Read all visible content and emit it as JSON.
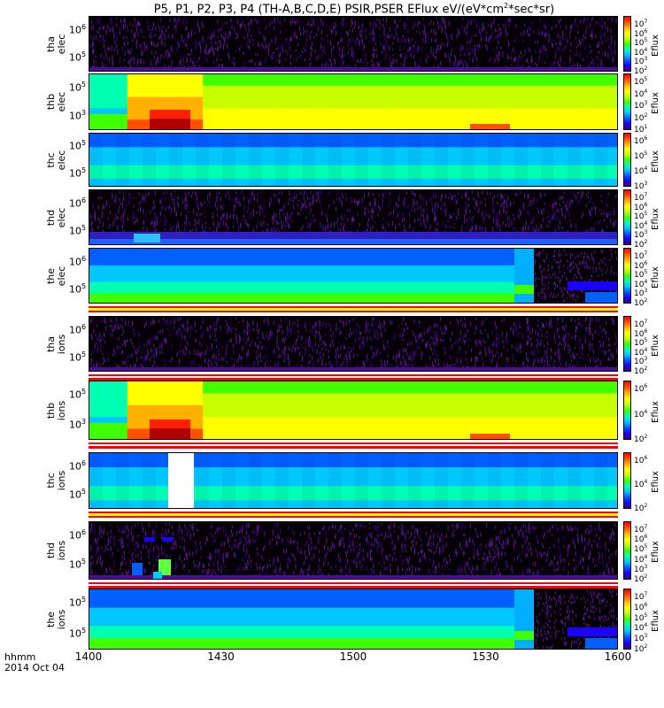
{
  "title": "P5, P1, P2, P3, P4 (TH-A,B,C,D,E) PSIR,PSER EFlux eV/(eV*cm2*sec*sr)",
  "title_parts": {
    "pre": "P5, P1, P2, P3, P4 (TH-A,B,C,D,E) PSIR,PSER EFlux eV/(eV*cm",
    "sup": "2",
    "post": "*sec*sr)"
  },
  "x_units": {
    "line1": "hhmm",
    "line2": "2014 Oct 04"
  },
  "colors": {
    "rainbow": [
      "#3b0080",
      "#1a00ff",
      "#0060ff",
      "#00c8ff",
      "#00ffb0",
      "#40ff00",
      "#c8ff00",
      "#ffff00",
      "#ffb000",
      "#ff5000",
      "#ff0000",
      "#b00000"
    ]
  },
  "chart_data": {
    "type": "heatmap",
    "x_ticks": [
      "1400",
      "1430",
      "1500",
      "1530",
      "1600"
    ],
    "x_range": [
      "1400",
      "1600"
    ],
    "colorbar_label": "Eflux",
    "panels": [
      {
        "id": "tha",
        "line1": "tha",
        "line2": "elec",
        "yticks": [
          "6",
          "5"
        ],
        "cbticks": [
          "7",
          "6",
          "5",
          "4",
          "3",
          "2"
        ],
        "pattern": "noise",
        "band": null
      },
      {
        "id": "thb",
        "line1": "thb",
        "line2": "elec",
        "yticks": [
          "5",
          "3"
        ],
        "cbticks": [
          "5",
          "4",
          "3",
          "2",
          "1"
        ],
        "pattern": "hot",
        "band": null
      },
      {
        "id": "thc",
        "line1": "thc",
        "line2": "elec",
        "yticks": [
          "5",
          "5"
        ],
        "cbticks": [
          "6",
          "5",
          "4",
          "3"
        ],
        "pattern": "blue",
        "band": null
      },
      {
        "id": "thd",
        "line1": "thd",
        "line2": "elec",
        "yticks": [
          "6",
          "5"
        ],
        "cbticks": [
          "7",
          "6",
          "5",
          "4",
          "3",
          "2"
        ],
        "pattern": "noise2",
        "band": null
      },
      {
        "id": "the",
        "line1": "the",
        "line2": "elec",
        "yticks": [
          "6",
          "5"
        ],
        "cbticks": [
          "7",
          "6",
          "5",
          "4",
          "3",
          "2"
        ],
        "pattern": "the",
        "band": "yellow"
      },
      {
        "id": "tha_i",
        "line1": "tha",
        "line2": "ions",
        "yticks": [
          "6",
          "5"
        ],
        "cbticks": [
          "7",
          "6",
          "5",
          "4",
          "3",
          "2"
        ],
        "pattern": "noise",
        "band": "red"
      },
      {
        "id": "thb_i",
        "line1": "thb",
        "line2": "ions",
        "yticks": [
          "5",
          "3"
        ],
        "cbticks": [
          "6",
          "4",
          "2"
        ],
        "pattern": "hot",
        "band": "red"
      },
      {
        "id": "thc_i",
        "line1": "thc",
        "line2": "ions",
        "yticks": [
          "6",
          "5"
        ],
        "cbticks": [
          "6",
          "4",
          "2"
        ],
        "pattern": "blue_gap",
        "band": "yellow"
      },
      {
        "id": "thd_i",
        "line1": "thd",
        "line2": "ions",
        "yticks": [
          "6",
          "5"
        ],
        "cbticks": [
          "7",
          "6",
          "5",
          "4",
          "3",
          "2"
        ],
        "pattern": "noise3",
        "band": "red"
      },
      {
        "id": "the_i",
        "line1": "the",
        "line2": "ions",
        "yticks": [
          "5",
          "5"
        ],
        "cbticks": [
          "7",
          "6",
          "5",
          "4",
          "3",
          "2"
        ],
        "pattern": "the",
        "band": null
      }
    ]
  }
}
